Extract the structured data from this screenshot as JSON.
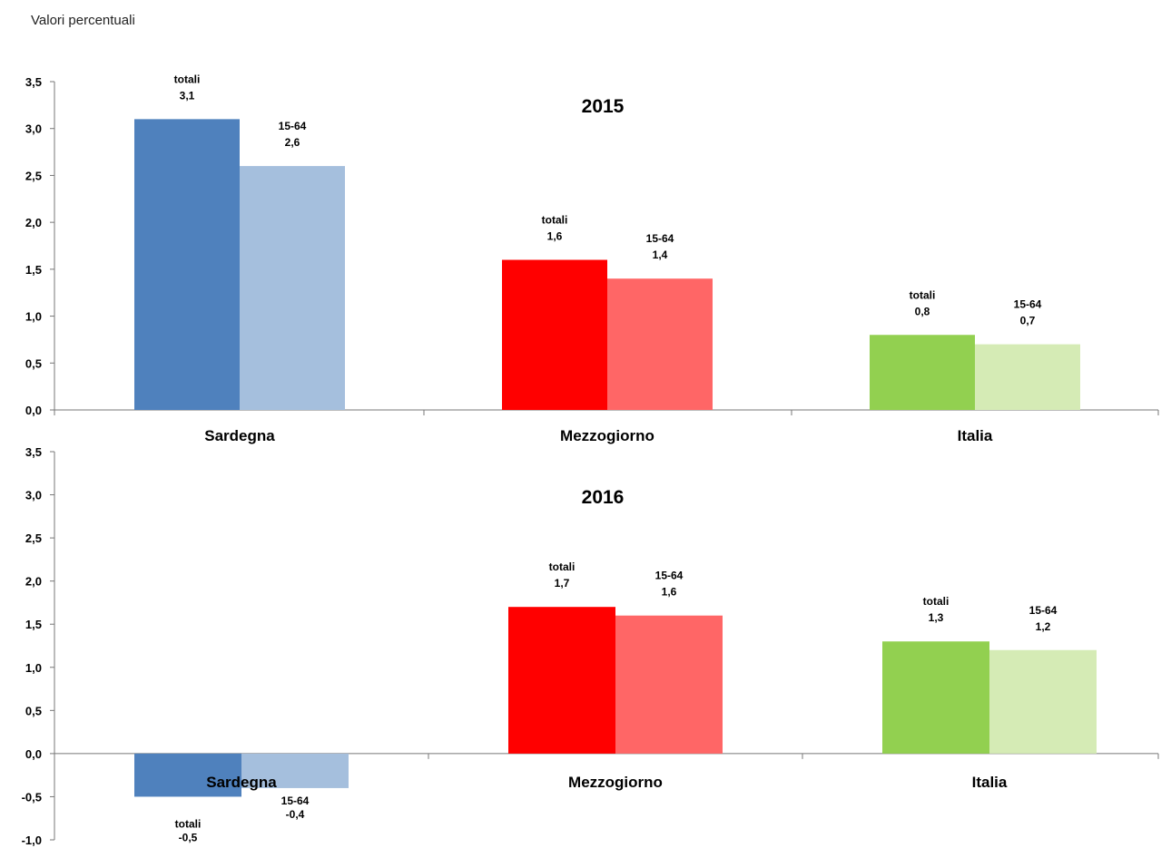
{
  "subtitle": "Valori percentuali",
  "chart_data": [
    {
      "type": "bar",
      "title": "2015",
      "categories": [
        "Sardegna",
        "Mezzogiorno",
        "Italia"
      ],
      "series": [
        {
          "name": "totali",
          "values": [
            3.1,
            1.6,
            0.8
          ],
          "labels": [
            "3,1",
            "1,6",
            "0,8"
          ]
        },
        {
          "name": "15-64",
          "values": [
            2.6,
            1.4,
            0.7
          ],
          "labels": [
            "2,6",
            "1,4",
            "0,7"
          ]
        }
      ],
      "colors": [
        [
          "#4F81BD",
          "#A5BFDD"
        ],
        [
          "#FF0000",
          "#FF6666"
        ],
        [
          "#92D050",
          "#D5EBB5"
        ]
      ],
      "ylim": [
        0,
        3.5
      ],
      "yticks": [
        "0,0",
        "0,5",
        "1,0",
        "1,5",
        "2,0",
        "2,5",
        "3,0",
        "3,5"
      ],
      "xlabel": "",
      "ylabel": "",
      "grid": false,
      "legend": "none"
    },
    {
      "type": "bar",
      "title": "2016",
      "categories": [
        "Sardegna",
        "Mezzogiorno",
        "Italia"
      ],
      "series": [
        {
          "name": "totali",
          "values": [
            -0.5,
            1.7,
            1.3
          ],
          "labels": [
            "-0,5",
            "1,7",
            "1,3"
          ]
        },
        {
          "name": "15-64",
          "values": [
            -0.4,
            1.6,
            1.2
          ],
          "labels": [
            "-0,4",
            "1,6",
            "1,2"
          ]
        }
      ],
      "colors": [
        [
          "#4F81BD",
          "#A5BFDD"
        ],
        [
          "#FF0000",
          "#FF6666"
        ],
        [
          "#92D050",
          "#D5EBB5"
        ]
      ],
      "ylim": [
        -1.0,
        3.5
      ],
      "yticks": [
        "-1,0",
        "-0,5",
        "0,0",
        "0,5",
        "1,0",
        "1,5",
        "2,0",
        "2,5",
        "3,0",
        "3,5"
      ],
      "xlabel": "",
      "ylabel": "",
      "grid": false,
      "legend": "none"
    }
  ]
}
